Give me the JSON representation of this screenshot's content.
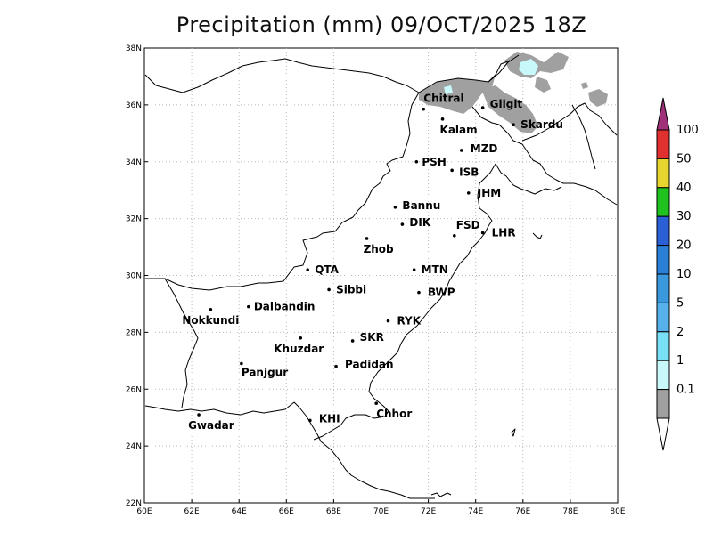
{
  "title": "Precipitation (mm) 09/OCT/2025 18Z",
  "axes": {
    "x_ticks": [
      "60E",
      "62E",
      "64E",
      "66E",
      "68E",
      "70E",
      "72E",
      "74E",
      "76E",
      "78E",
      "80E"
    ],
    "y_ticks": [
      "38N",
      "36N",
      "34N",
      "32N",
      "30N",
      "28N",
      "26N",
      "24N",
      "22N"
    ],
    "lon_range": [
      60,
      80
    ],
    "lat_range": [
      22,
      38
    ],
    "grid": "dotted"
  },
  "cities": [
    {
      "name": "Chitral",
      "lon": 71.8,
      "lat": 35.85
    },
    {
      "name": "Kalam",
      "lon": 72.6,
      "lat": 35.5
    },
    {
      "name": "Gilgit",
      "lon": 74.3,
      "lat": 35.9
    },
    {
      "name": "Skardu",
      "lon": 75.6,
      "lat": 35.3
    },
    {
      "name": "MZD",
      "lon": 73.4,
      "lat": 34.4
    },
    {
      "name": "PSH",
      "lon": 71.5,
      "lat": 34.0
    },
    {
      "name": "ISB",
      "lon": 73.0,
      "lat": 33.7
    },
    {
      "name": "JHM",
      "lon": 73.7,
      "lat": 32.9
    },
    {
      "name": "Bannu",
      "lon": 70.6,
      "lat": 32.4
    },
    {
      "name": "DIK",
      "lon": 70.9,
      "lat": 31.8
    },
    {
      "name": "FSD",
      "lon": 73.1,
      "lat": 31.4
    },
    {
      "name": "LHR",
      "lon": 74.3,
      "lat": 31.5
    },
    {
      "name": "Zhob",
      "lon": 69.4,
      "lat": 31.3
    },
    {
      "name": "QTA",
      "lon": 66.9,
      "lat": 30.2
    },
    {
      "name": "MTN",
      "lon": 71.4,
      "lat": 30.2
    },
    {
      "name": "Sibbi",
      "lon": 67.8,
      "lat": 29.5
    },
    {
      "name": "BWP",
      "lon": 71.6,
      "lat": 29.4
    },
    {
      "name": "Dalbandin",
      "lon": 64.4,
      "lat": 28.9
    },
    {
      "name": "Nokkundi",
      "lon": 62.8,
      "lat": 28.8
    },
    {
      "name": "RYK",
      "lon": 70.3,
      "lat": 28.4
    },
    {
      "name": "Khuzdar",
      "lon": 66.6,
      "lat": 27.8
    },
    {
      "name": "SKR",
      "lon": 68.8,
      "lat": 27.7
    },
    {
      "name": "Panjgur",
      "lon": 64.1,
      "lat": 26.9
    },
    {
      "name": "Padidan",
      "lon": 68.1,
      "lat": 26.8
    },
    {
      "name": "Chhor",
      "lon": 69.8,
      "lat": 25.5
    },
    {
      "name": "KHI",
      "lon": 67.0,
      "lat": 24.9
    },
    {
      "name": "Gwadar",
      "lon": 62.3,
      "lat": 25.1
    }
  ],
  "colorbar": {
    "levels": [
      {
        "label": "100",
        "color": "#e03030"
      },
      {
        "label": "50",
        "color": "#e6d52e"
      },
      {
        "label": "40",
        "color": "#1fc21f"
      },
      {
        "label": "30",
        "color": "#2a5fd6"
      },
      {
        "label": "20",
        "color": "#2a7fd6"
      },
      {
        "label": "10",
        "color": "#3a98dc"
      },
      {
        "label": "5",
        "color": "#56b0ea"
      },
      {
        "label": "2",
        "color": "#78e0f6"
      },
      {
        "label": "1",
        "color": "#c8f8fa"
      },
      {
        "label": "0.1",
        "color": "#a0a0a0"
      }
    ],
    "top_cap_color": "#a0307a",
    "bottom_cap_color": "#ffffff"
  },
  "precip_color_gray": "#a0a0a0",
  "precip_color_cyan": "#c8f8fa"
}
